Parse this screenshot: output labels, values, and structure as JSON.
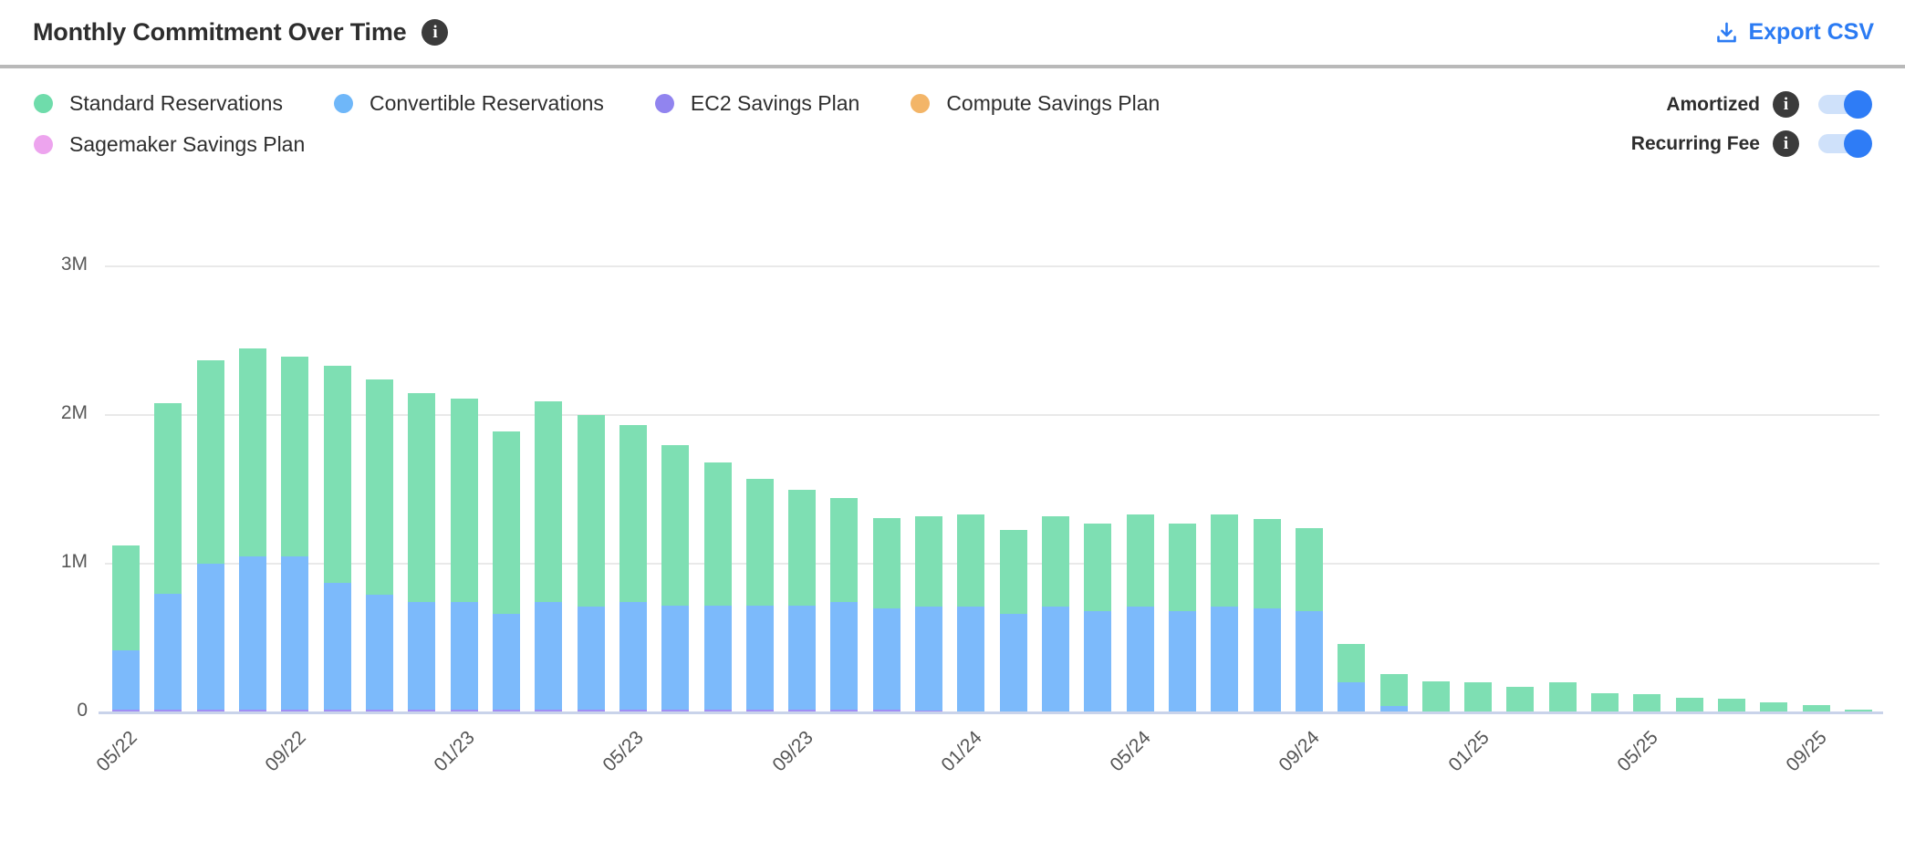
{
  "header": {
    "title": "Monthly Commitment Over Time",
    "export_label": "Export CSV"
  },
  "legend": {
    "items": [
      {
        "label": "Standard Reservations",
        "color": "#6fdcab"
      },
      {
        "label": "Convertible Reservations",
        "color": "#6fb7f9"
      },
      {
        "label": "EC2 Savings Plan",
        "color": "#9184ef"
      },
      {
        "label": "Compute Savings Plan",
        "color": "#f3b568"
      },
      {
        "label": "Sagemaker Savings Plan",
        "color": "#eda4ee"
      }
    ]
  },
  "toggles": {
    "items": [
      {
        "label": "Amortized",
        "state": "on"
      },
      {
        "label": "Recurring Fee",
        "state": "on"
      }
    ],
    "accent_color": "#2e7cf6",
    "track_color": "#cfe1fa"
  },
  "chart_data": {
    "type": "bar",
    "stacked": true,
    "unit": "USD, millions (M)",
    "title": "Monthly Commitment Over Time",
    "xlabel": "",
    "ylabel": "",
    "ylim": [
      0,
      3
    ],
    "yticks": [
      {
        "value": 0,
        "label": "0"
      },
      {
        "value": 1,
        "label": "1M"
      },
      {
        "value": 2,
        "label": "2M"
      },
      {
        "value": 3,
        "label": "3M"
      }
    ],
    "grid": "horizontal",
    "legend_position": "top-left",
    "tick_interval": 4,
    "categories": [
      "05/22",
      "06/22",
      "07/22",
      "08/22",
      "09/22",
      "10/22",
      "11/22",
      "12/22",
      "01/23",
      "02/23",
      "03/23",
      "04/23",
      "05/23",
      "06/23",
      "07/23",
      "08/23",
      "09/23",
      "10/23",
      "11/23",
      "12/23",
      "01/24",
      "02/24",
      "03/24",
      "04/24",
      "05/24",
      "06/24",
      "07/24",
      "08/24",
      "09/24",
      "10/24",
      "11/24",
      "12/24",
      "01/25",
      "02/25",
      "03/25",
      "04/25",
      "05/25",
      "06/25",
      "07/25",
      "08/25",
      "09/25",
      "10/25"
    ],
    "shown_tick_labels": [
      "05/22",
      "09/22",
      "01/23",
      "05/23",
      "09/23",
      "01/24",
      "05/24",
      "09/24",
      "01/25",
      "05/25",
      "09/25"
    ],
    "stack_order_note": "series listed bottom-to-top",
    "series": [
      {
        "name": "EC2 Savings Plan",
        "color": "#a08ef5",
        "values": [
          0.02,
          0.02,
          0.02,
          0.02,
          0.02,
          0.02,
          0.02,
          0.02,
          0.02,
          0.02,
          0.02,
          0.02,
          0.02,
          0.02,
          0.02,
          0.02,
          0.02,
          0.02,
          0.02,
          0.01,
          0,
          0,
          0,
          0,
          0,
          0,
          0,
          0,
          0,
          0,
          0,
          0,
          0,
          0,
          0,
          0,
          0,
          0,
          0,
          0,
          0,
          0
        ]
      },
      {
        "name": "Convertible Reservations",
        "color": "#7cbafb",
        "values": [
          0.4,
          0.78,
          0.98,
          1.03,
          1.03,
          0.85,
          0.77,
          0.72,
          0.72,
          0.64,
          0.72,
          0.69,
          0.72,
          0.7,
          0.7,
          0.7,
          0.7,
          0.72,
          0.68,
          0.7,
          0.71,
          0.66,
          0.71,
          0.68,
          0.71,
          0.68,
          0.71,
          0.7,
          0.68,
          0.2,
          0.04,
          0,
          0,
          0,
          0,
          0,
          0,
          0,
          0,
          0,
          0,
          0
        ]
      },
      {
        "name": "Standard Reservations",
        "color": "#7edfb3",
        "values": [
          0.7,
          1.28,
          1.37,
          1.4,
          1.34,
          1.46,
          1.45,
          1.41,
          1.37,
          1.23,
          1.35,
          1.29,
          1.19,
          1.08,
          0.96,
          0.85,
          0.78,
          0.7,
          0.61,
          0.61,
          0.62,
          0.57,
          0.61,
          0.59,
          0.62,
          0.59,
          0.62,
          0.6,
          0.56,
          0.26,
          0.22,
          0.21,
          0.2,
          0.17,
          0.2,
          0.13,
          0.12,
          0.1,
          0.09,
          0.07,
          0.05,
          0.02
        ]
      },
      {
        "name": "Compute Savings Plan",
        "color": "#f3b568",
        "values": [
          0,
          0,
          0,
          0,
          0,
          0,
          0,
          0,
          0,
          0,
          0,
          0,
          0,
          0,
          0,
          0,
          0,
          0,
          0,
          0,
          0,
          0,
          0,
          0,
          0,
          0,
          0,
          0,
          0,
          0,
          0,
          0,
          0,
          0,
          0,
          0,
          0,
          0,
          0,
          0,
          0,
          0
        ]
      },
      {
        "name": "Sagemaker Savings Plan",
        "color": "#eda4ee",
        "values": [
          0,
          0,
          0,
          0,
          0,
          0,
          0,
          0,
          0,
          0,
          0,
          0,
          0,
          0,
          0,
          0,
          0,
          0,
          0,
          0,
          0,
          0,
          0,
          0,
          0,
          0,
          0,
          0,
          0,
          0,
          0,
          0,
          0,
          0,
          0,
          0,
          0,
          0,
          0,
          0,
          0,
          0
        ]
      }
    ]
  }
}
